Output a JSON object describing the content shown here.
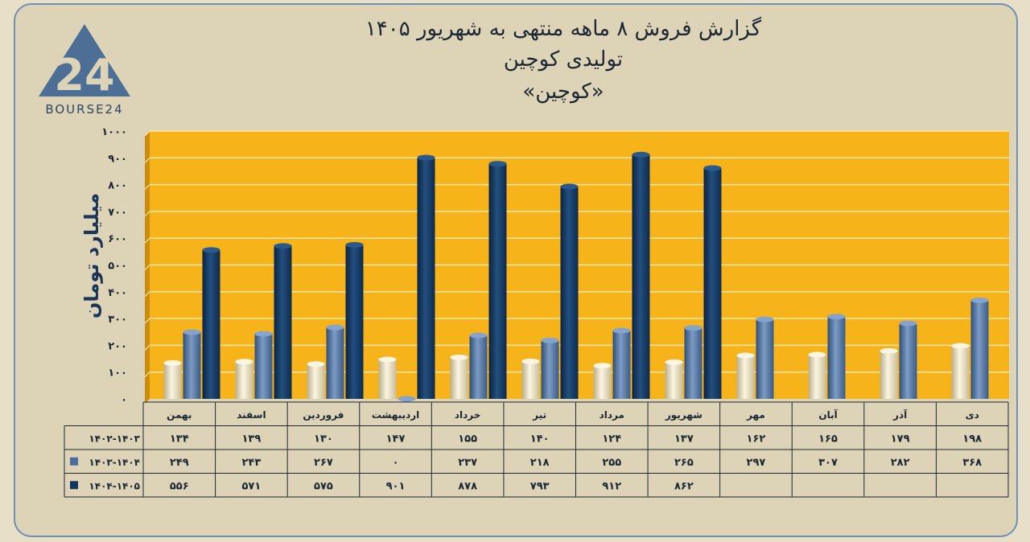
{
  "title_lines": [
    "گزارش  فروش ۸ ماهه منتهی به شهریور ۱۴۰۵",
    "تولیدی کوچین",
    "«کوچین»"
  ],
  "logo": {
    "number": "24",
    "text": "BOURSE24"
  },
  "colors": {
    "plot_bg": "#f7b31a",
    "series": [
      "#ece2c2",
      "#4a6f9e",
      "#14375f"
    ]
  },
  "chart_data": {
    "type": "bar",
    "ylabel": "میلیارد تومان",
    "ylim": [
      0,
      1000
    ],
    "yticks": [
      "۰",
      "۱۰۰",
      "۲۰۰",
      "۳۰۰",
      "۴۰۰",
      "۵۰۰",
      "۶۰۰",
      "۷۰۰",
      "۸۰۰",
      "۹۰۰",
      "۱۰۰۰"
    ],
    "categories": [
      "بهمن",
      "اسفند",
      "فروردین",
      "اردیبهشت",
      "خرداد",
      "تیر",
      "مرداد",
      "شهریور",
      "مهر",
      "آبان",
      "آذر",
      "دی"
    ],
    "series": [
      {
        "name": "۱۴۰۲-۱۴۰۳",
        "values": [
          134,
          139,
          130,
          147,
          155,
          140,
          124,
          137,
          162,
          165,
          179,
          198
        ],
        "labels": [
          "۱۳۴",
          "۱۳۹",
          "۱۳۰",
          "۱۴۷",
          "۱۵۵",
          "۱۴۰",
          "۱۲۴",
          "۱۳۷",
          "۱۶۲",
          "۱۶۵",
          "۱۷۹",
          "۱۹۸"
        ]
      },
      {
        "name": "۱۴۰۳-۱۴۰۴",
        "values": [
          249,
          243,
          267,
          0,
          237,
          218,
          255,
          265,
          297,
          307,
          282,
          368
        ],
        "labels": [
          "۲۴۹",
          "۲۴۳",
          "۲۶۷",
          "۰",
          "۲۳۷",
          "۲۱۸",
          "۲۵۵",
          "۲۶۵",
          "۲۹۷",
          "۳۰۷",
          "۲۸۲",
          "۳۶۸"
        ]
      },
      {
        "name": "۱۴۰۴-۱۴۰۵",
        "values": [
          556,
          571,
          575,
          901,
          878,
          793,
          912,
          862,
          null,
          null,
          null,
          null
        ],
        "labels": [
          "۵۵۶",
          "۵۷۱",
          "۵۷۵",
          "۹۰۱",
          "۸۷۸",
          "۷۹۳",
          "۹۱۲",
          "۸۶۲",
          "",
          "",
          "",
          ""
        ]
      }
    ]
  }
}
